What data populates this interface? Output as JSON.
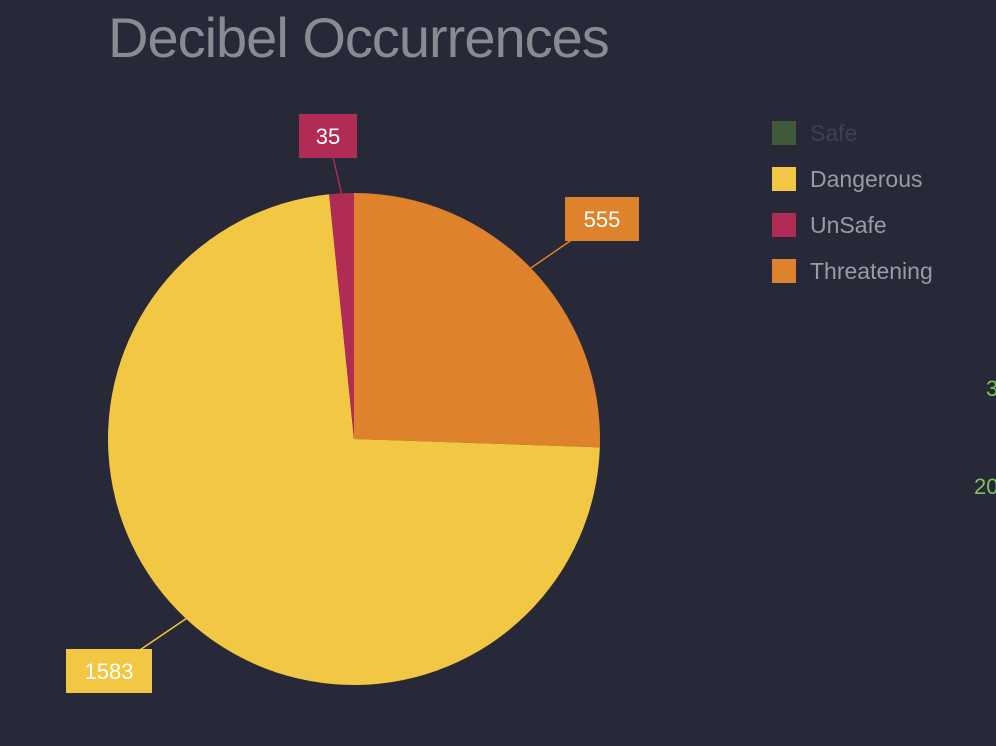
{
  "chart_data": {
    "type": "pie",
    "title": "Decibel Occurrences",
    "slices": [
      {
        "name": "Safe",
        "value": 0,
        "color": "#3e5a3c",
        "disabled": true
      },
      {
        "name": "Dangerous",
        "value": 1583,
        "color": "#f2c744"
      },
      {
        "name": "UnSafe",
        "value": 35,
        "color": "#b02c54"
      },
      {
        "name": "Threatening",
        "value": 555,
        "color": "#de822b"
      }
    ],
    "data_labels": [
      "1583",
      "35",
      "555"
    ],
    "legend_position": "top-right"
  },
  "side_texts": [
    "3",
    "20"
  ]
}
